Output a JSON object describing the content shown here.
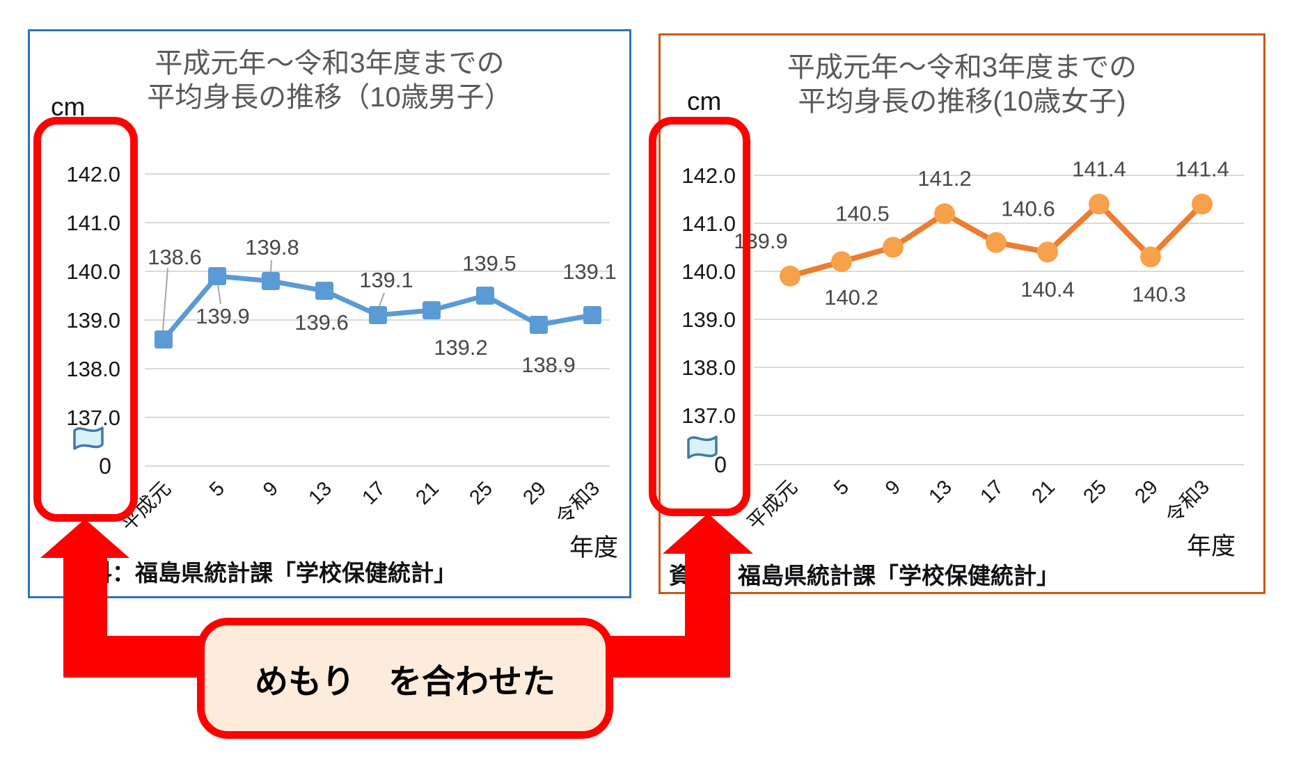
{
  "page": {
    "background": "#FFFFFF"
  },
  "callout": {
    "text": "めもり　を合わせた",
    "fill_color": "#FDEBDB",
    "border_color": "#FF0000",
    "arrow_color": "#FF0000"
  },
  "highlight": {
    "rect_border_color": "#FE0101"
  },
  "chart_data": [
    {
      "type": "line",
      "title_line1": "平成元年～令和3年度までの",
      "title_line2": "平均身長の推移（10歳男子）",
      "unit_label": "cm",
      "categories": [
        "平成元",
        "5",
        "9",
        "13",
        "17",
        "21",
        "25",
        "29",
        "令和3"
      ],
      "values": [
        138.6,
        139.9,
        139.8,
        139.6,
        139.1,
        139.2,
        139.5,
        138.9,
        139.1
      ],
      "data_labels": [
        "138.6",
        "139.9",
        "139.8",
        "139.6",
        "139.1",
        "139.2",
        "139.5",
        "138.9",
        "139.1"
      ],
      "y_ticks": [
        "142.0",
        "141.0",
        "140.0",
        "139.0",
        "138.0",
        "137.0"
      ],
      "axis_break_zero": "0",
      "ylim": [
        137.0,
        142.0
      ],
      "xlabel": "年度",
      "source": "資料：福島県統計課「学校保健統計」",
      "line_color": "#5B9BD5",
      "marker_color": "#5B9BD5",
      "marker": "square",
      "border_color": "#2E74B5",
      "grid": true,
      "legend": "none"
    },
    {
      "type": "line",
      "title_line1": "平成元年～令和3年度までの",
      "title_line2": "平均身長の推移(10歳女子)",
      "unit_label": "cm",
      "categories": [
        "平成元",
        "5",
        "9",
        "13",
        "17",
        "21",
        "25",
        "29",
        "令和3"
      ],
      "values": [
        139.9,
        140.2,
        140.5,
        141.2,
        140.6,
        140.4,
        141.4,
        140.3,
        141.4
      ],
      "data_labels": [
        "139.9",
        "140.2",
        "140.5",
        "141.2",
        "140.6",
        "140.4",
        "141.4",
        "140.3",
        "141.4"
      ],
      "y_ticks": [
        "142.0",
        "141.0",
        "140.0",
        "139.0",
        "138.0",
        "137.0"
      ],
      "axis_break_zero": "0",
      "ylim": [
        137.0,
        142.0
      ],
      "xlabel": "年度",
      "source": "資料：福島県統計課「学校保健統計」",
      "line_color": "#ED7D31",
      "marker_color": "#F7A24A",
      "marker": "circle",
      "border_color": "#C55A11",
      "grid": true,
      "legend": "none"
    }
  ],
  "icons": {
    "axis_break_flag_icon": {
      "fill": "#D8F2F7",
      "stroke": "#4477AA"
    }
  },
  "gridline_color": "#D9D9D9",
  "leader_line_color": "#A6A6A6"
}
